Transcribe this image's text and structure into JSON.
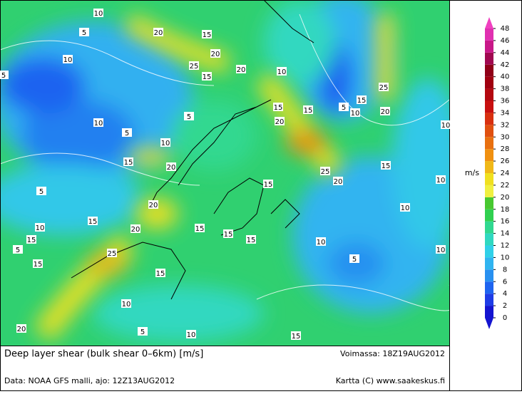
{
  "map": {
    "caption": "Deep layer shear (bulk shear 0–6km) [m/s]",
    "valid": "Voimassa: 18Z19AUG2012",
    "source": "Data: NOAA GFS malli, ajo: 12Z13AUG2012",
    "credit": "Kartta (C) www.saakeskus.fi",
    "contour_labels": [
      10,
      20,
      15,
      5,
      10,
      20,
      25,
      15,
      20,
      10,
      5,
      5,
      10,
      5,
      15,
      15,
      20,
      5,
      10,
      15,
      20,
      25,
      10,
      15,
      10,
      20,
      25,
      20,
      15,
      10,
      5,
      15,
      10,
      20,
      15,
      10,
      15,
      20,
      15,
      15,
      15,
      10,
      10,
      5,
      25,
      15,
      5,
      15,
      10,
      5,
      10,
      15,
      20
    ]
  },
  "colorbar": {
    "unit": "m/s",
    "levels": [
      0,
      2,
      4,
      6,
      8,
      10,
      12,
      14,
      16,
      18,
      20,
      22,
      24,
      26,
      28,
      30,
      32,
      34,
      36,
      38,
      40,
      42,
      44,
      46,
      48
    ],
    "colors": [
      "#1414d0",
      "#1e3ce6",
      "#1e64f0",
      "#2890f0",
      "#30b4f0",
      "#30d0e8",
      "#30d8c0",
      "#30d890",
      "#30d050",
      "#48c830",
      "#f0f040",
      "#f0e020",
      "#f0b818",
      "#f09010",
      "#e87010",
      "#e05010",
      "#d83010",
      "#c81010",
      "#b40810",
      "#a00010",
      "#900018",
      "#a00850",
      "#c81888",
      "#e030b0"
    ],
    "low_color": "#1414d0",
    "high_color": "#f040c0"
  }
}
